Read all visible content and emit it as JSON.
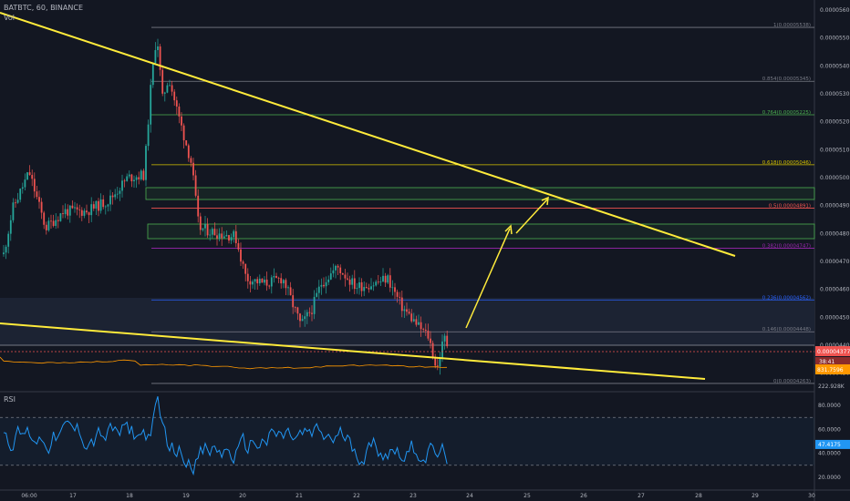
{
  "header": {
    "symbol_line": "BATBTC, 60, BINANCE",
    "vol_label": "Vol"
  },
  "rsi_label": "RSI",
  "chart_data": {
    "type": "candlestick",
    "price_axis": {
      "range": [
        4.24e-05,
        5.61e-05
      ],
      "ticks": [
        "0.00005600",
        "0.00005500",
        "0.00005400",
        "0.00005300",
        "0.00005200",
        "0.00005100",
        "0.00005000",
        "0.00004900",
        "0.00004800",
        "0.00004700",
        "0.00004600",
        "0.00004500",
        "0.00004400",
        "0.00004300"
      ]
    },
    "time_axis": {
      "labels": [
        "06:00",
        "17",
        "18",
        "19",
        "20",
        "21",
        "22",
        "23",
        "24",
        "25",
        "26",
        "27",
        "28",
        "29",
        "30"
      ]
    },
    "fib_levels": [
      {
        "ratio": "1",
        "value": "0.00005538",
        "label": "1(0.00005538)",
        "color": "#787b86"
      },
      {
        "ratio": "0.854",
        "value": "0.00005345",
        "label": "0.854(0.00005345)",
        "color": "#787b86"
      },
      {
        "ratio": "0.764",
        "value": "0.00005225",
        "label": "0.764(0.00005225)",
        "color": "#4caf50"
      },
      {
        "ratio": "0.618",
        "value": "0.00005046",
        "label": "0.618(0.00005046)",
        "color": "#d4c200"
      },
      {
        "ratio": "0.5",
        "value": "0.00004891",
        "label": "0.5(0.00004891)",
        "color": "#ef5350"
      },
      {
        "ratio": "0.382",
        "value": "0.00004747",
        "label": "0.382(0.00004747)",
        "color": "#9c27b0"
      },
      {
        "ratio": "0.236",
        "value": "0.00004562",
        "label": "0.236(0.00004562)",
        "color": "#2962ff"
      },
      {
        "ratio": "0.146",
        "value": "0.00004448",
        "label": "0.146(0.00004448)",
        "color": "#787b86"
      },
      {
        "ratio": "0",
        "value": "0.00004263",
        "label": "0(0.00004263)",
        "color": "#787b86"
      }
    ],
    "current_price": {
      "value": "0.00004377",
      "countdown": "38:41",
      "color": "#ef5350"
    },
    "volume_ma_label": "831.7596",
    "volume_extra_label": "222.928K",
    "rsi": {
      "ticks": [
        "80.0000",
        "60.0000",
        "40.0000",
        "20.0000"
      ],
      "value_label": "47.4175",
      "upper": 70,
      "lower": 30
    },
    "colors": {
      "up": "#26a69a",
      "down": "#ef5350",
      "trend": "#ffeb3b",
      "rsi": "#2196f3",
      "volume_ma": "#ff9800",
      "grid": "#2a2e39"
    }
  }
}
